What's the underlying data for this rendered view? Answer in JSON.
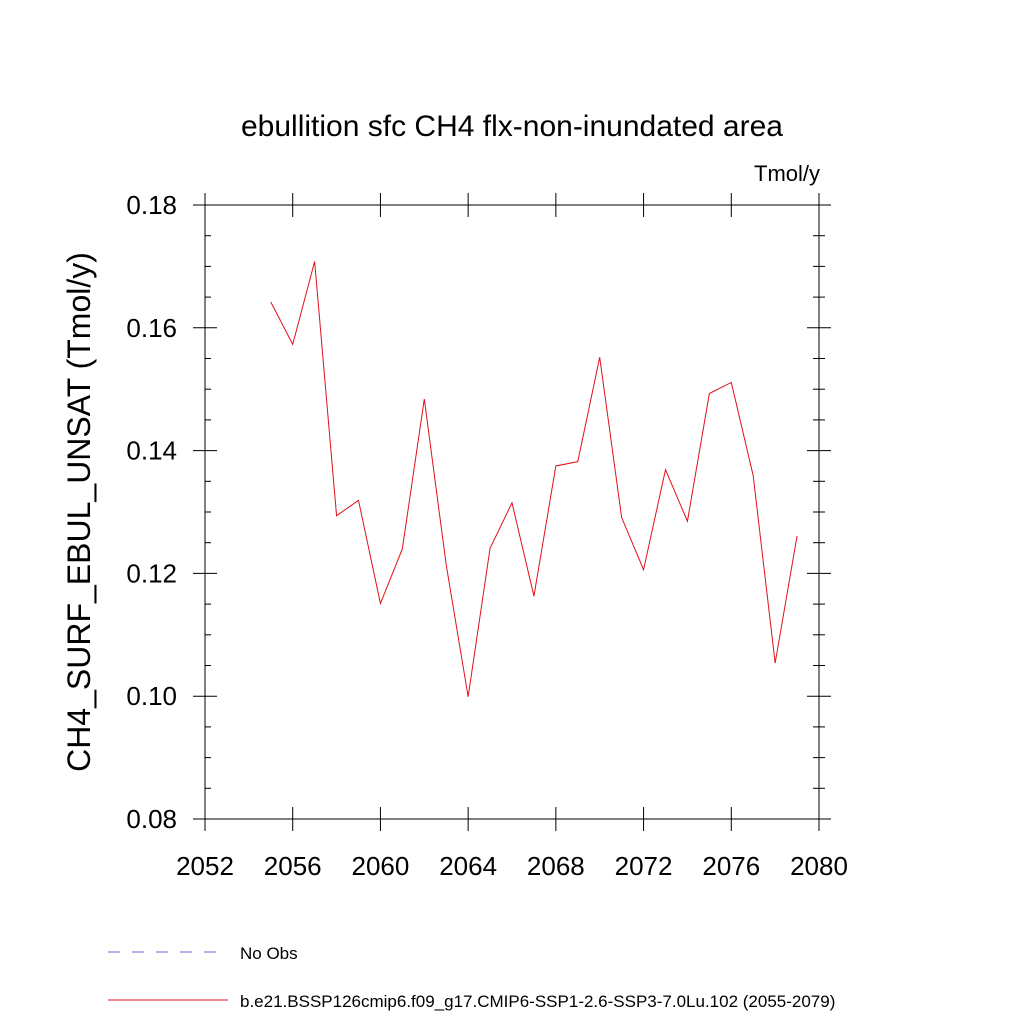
{
  "chart_data": {
    "type": "line",
    "title": "ebullition sfc CH4 flx-non-inundated area",
    "units": "Tmol/y",
    "ylabel": "CH4_SURF_EBUL_UNSAT  (Tmol/y)",
    "xlabel": "",
    "xlim": [
      2052,
      2080
    ],
    "ylim": [
      0.08,
      0.18
    ],
    "x_ticks": [
      "2052",
      "2056",
      "2060",
      "2064",
      "2068",
      "2072",
      "2076",
      "2080"
    ],
    "y_ticks": [
      "0.08",
      "0.10",
      "0.12",
      "0.14",
      "0.16",
      "0.18"
    ],
    "grid": false,
    "legend_position": "bottom",
    "legend": [
      {
        "label": "No Obs",
        "color": "#6666cc",
        "style": "dashed"
      },
      {
        "label": "b.e21.BSSP126cmip6.f09_g17.CMIP6-SSP1-2.6-SSP3-7.0Lu.102 (2055-2079)",
        "color": "#e0101a",
        "style": "solid"
      }
    ],
    "series": [
      {
        "name": "b.e21.BSSP126cmip6.f09_g17.CMIP6-SSP1-2.6-SSP3-7.0Lu.102 (2055-2079)",
        "color": "#e0101a",
        "x": [
          2055,
          2056,
          2057,
          2058,
          2059,
          2060,
          2061,
          2062,
          2063,
          2064,
          2065,
          2066,
          2067,
          2068,
          2069,
          2070,
          2071,
          2072,
          2073,
          2074,
          2075,
          2076,
          2077,
          2078,
          2079
        ],
        "y": [
          0.1642,
          0.1573,
          0.1708,
          0.1294,
          0.1319,
          0.1151,
          0.124,
          0.1484,
          0.1214,
          0.0999,
          0.1241,
          0.1315,
          0.1163,
          0.1375,
          0.1382,
          0.1552,
          0.1291,
          0.1206,
          0.1369,
          0.1285,
          0.1493,
          0.1511,
          0.1359,
          0.1054,
          0.1261
        ]
      }
    ]
  }
}
